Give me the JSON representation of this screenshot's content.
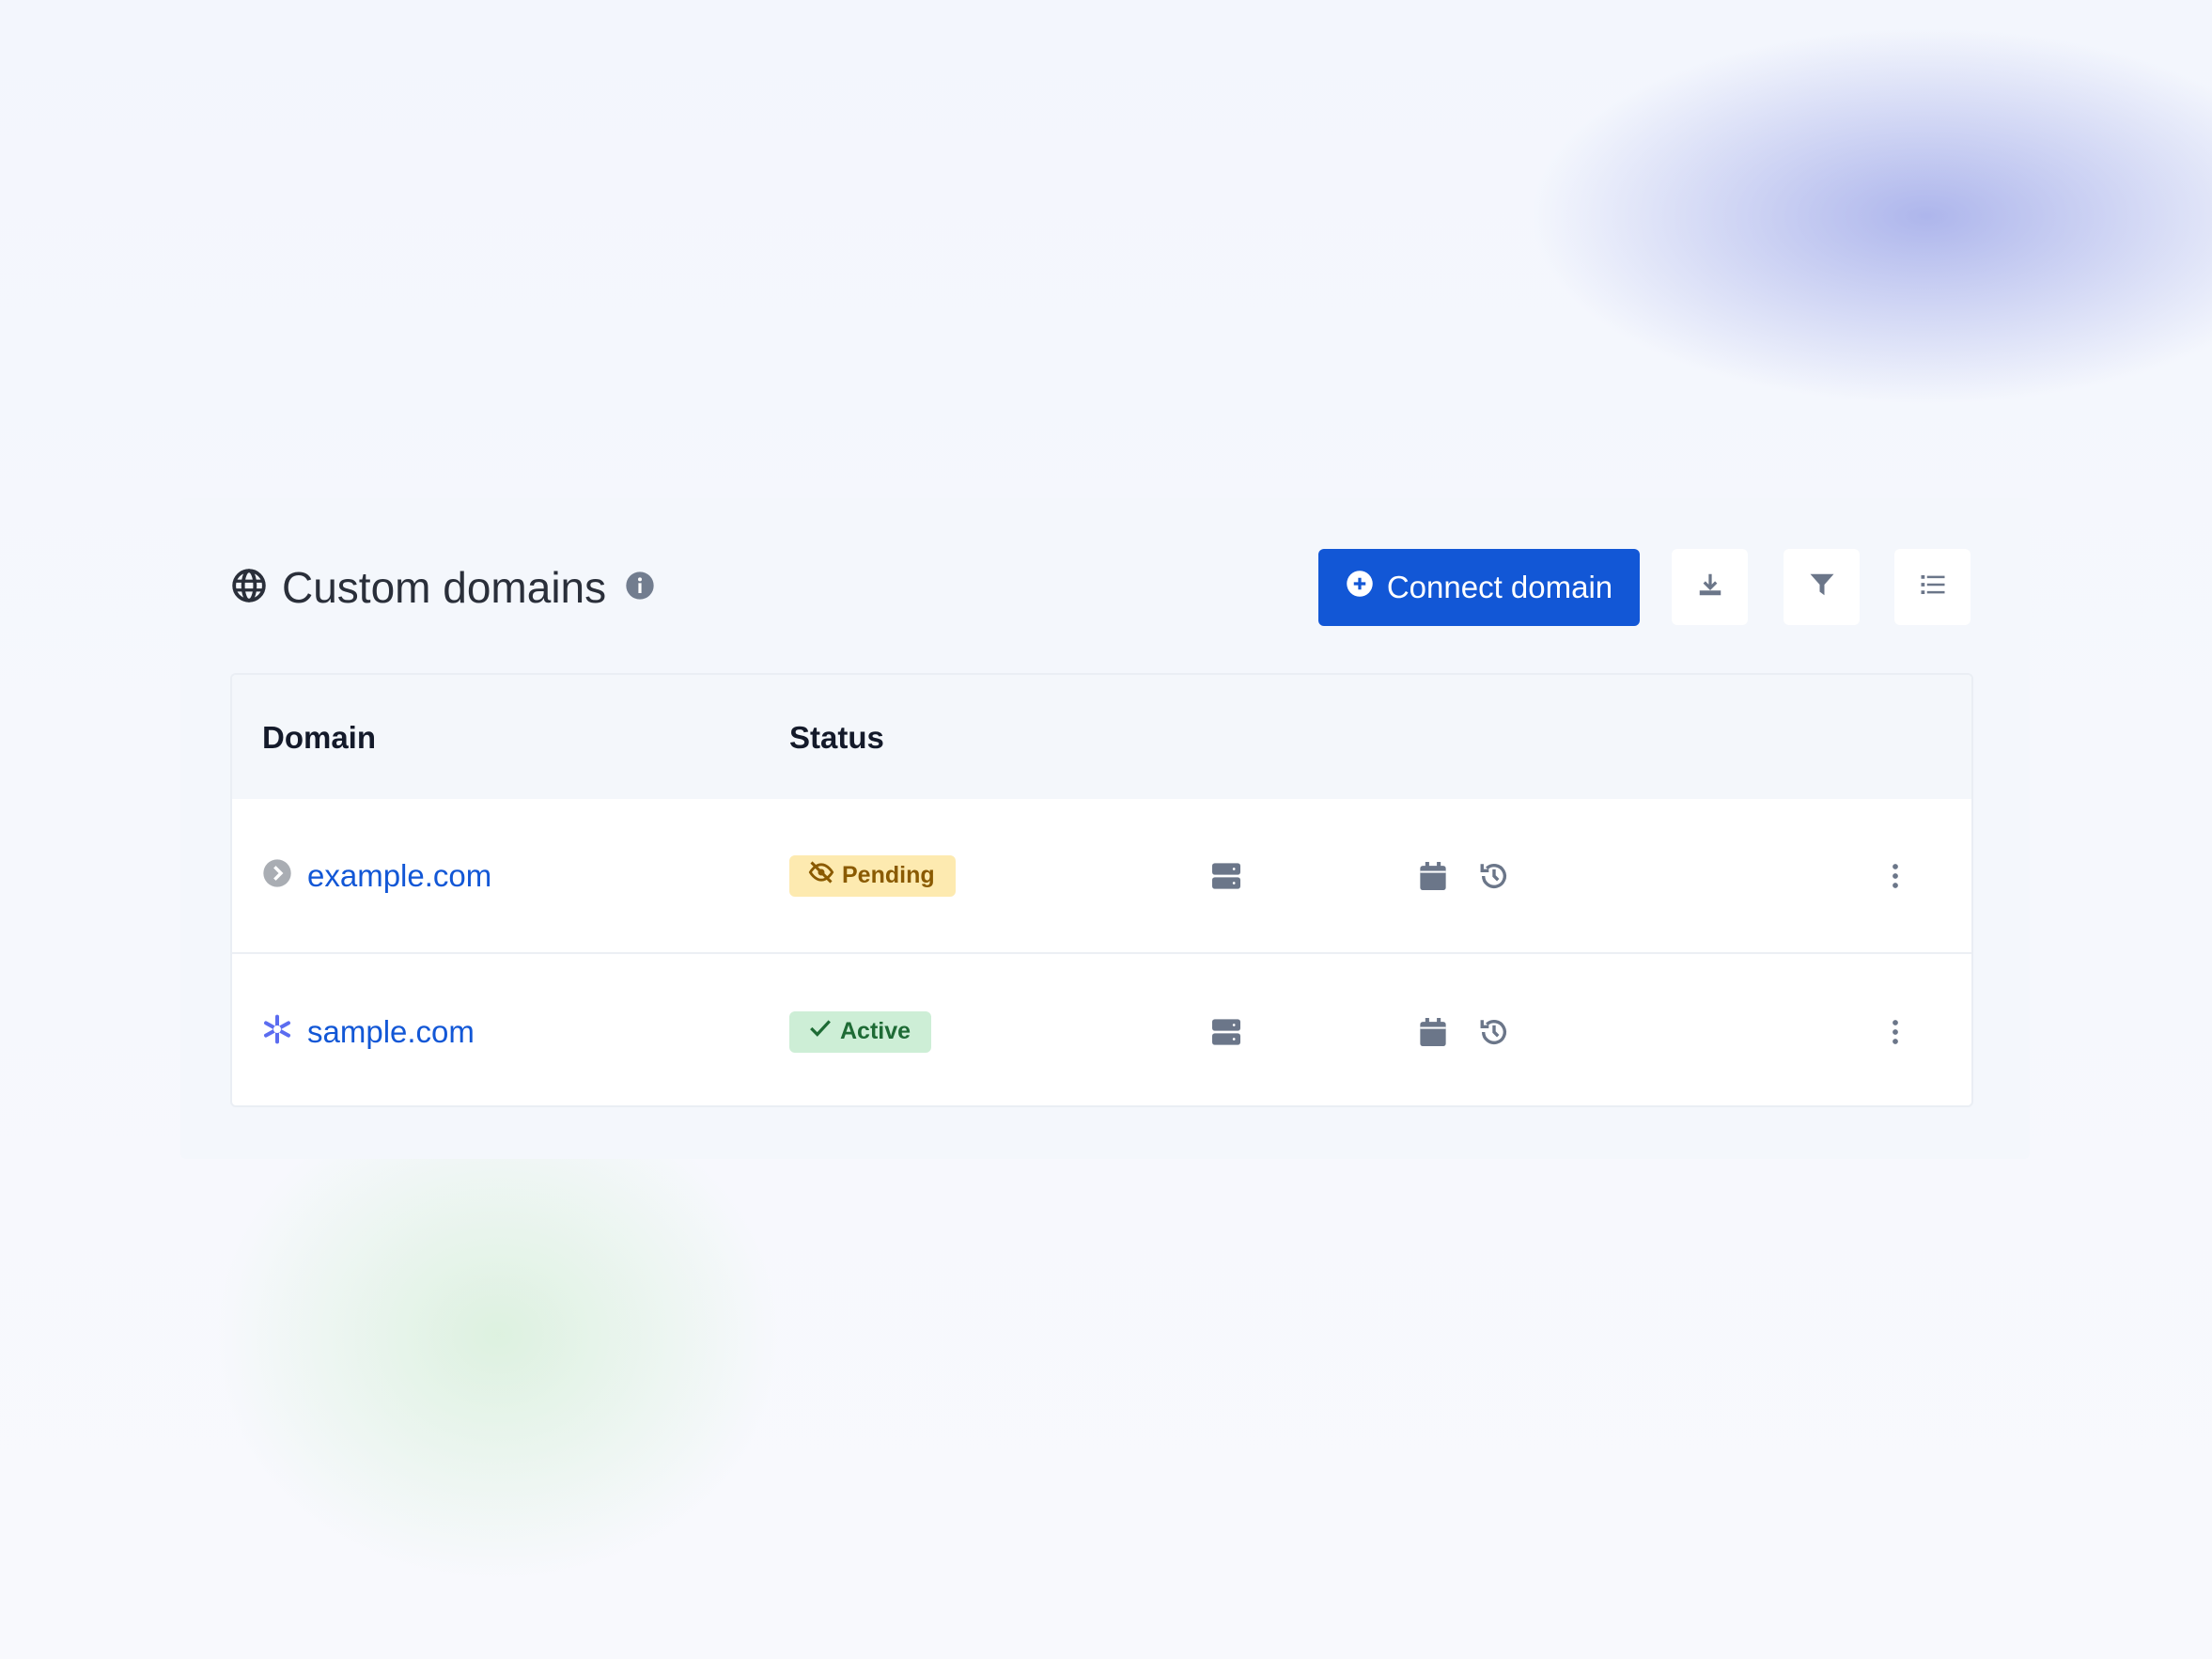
{
  "header": {
    "title": "Custom domains",
    "connect_label": "Connect domain"
  },
  "table": {
    "columns": [
      "Domain",
      "Status"
    ],
    "rows": [
      {
        "domain": "example.com",
        "status": "Pending",
        "status_color": "#8a5a00",
        "status_bg": "#fdeab0",
        "icon": "chevron-circle-icon"
      },
      {
        "domain": "sample.com",
        "status": "Active",
        "status_color": "#1e6b35",
        "status_bg": "#cdeed6",
        "icon": "sparkle-icon"
      }
    ]
  },
  "colors": {
    "accent": "#1257d6",
    "icon": "#6b7689"
  }
}
